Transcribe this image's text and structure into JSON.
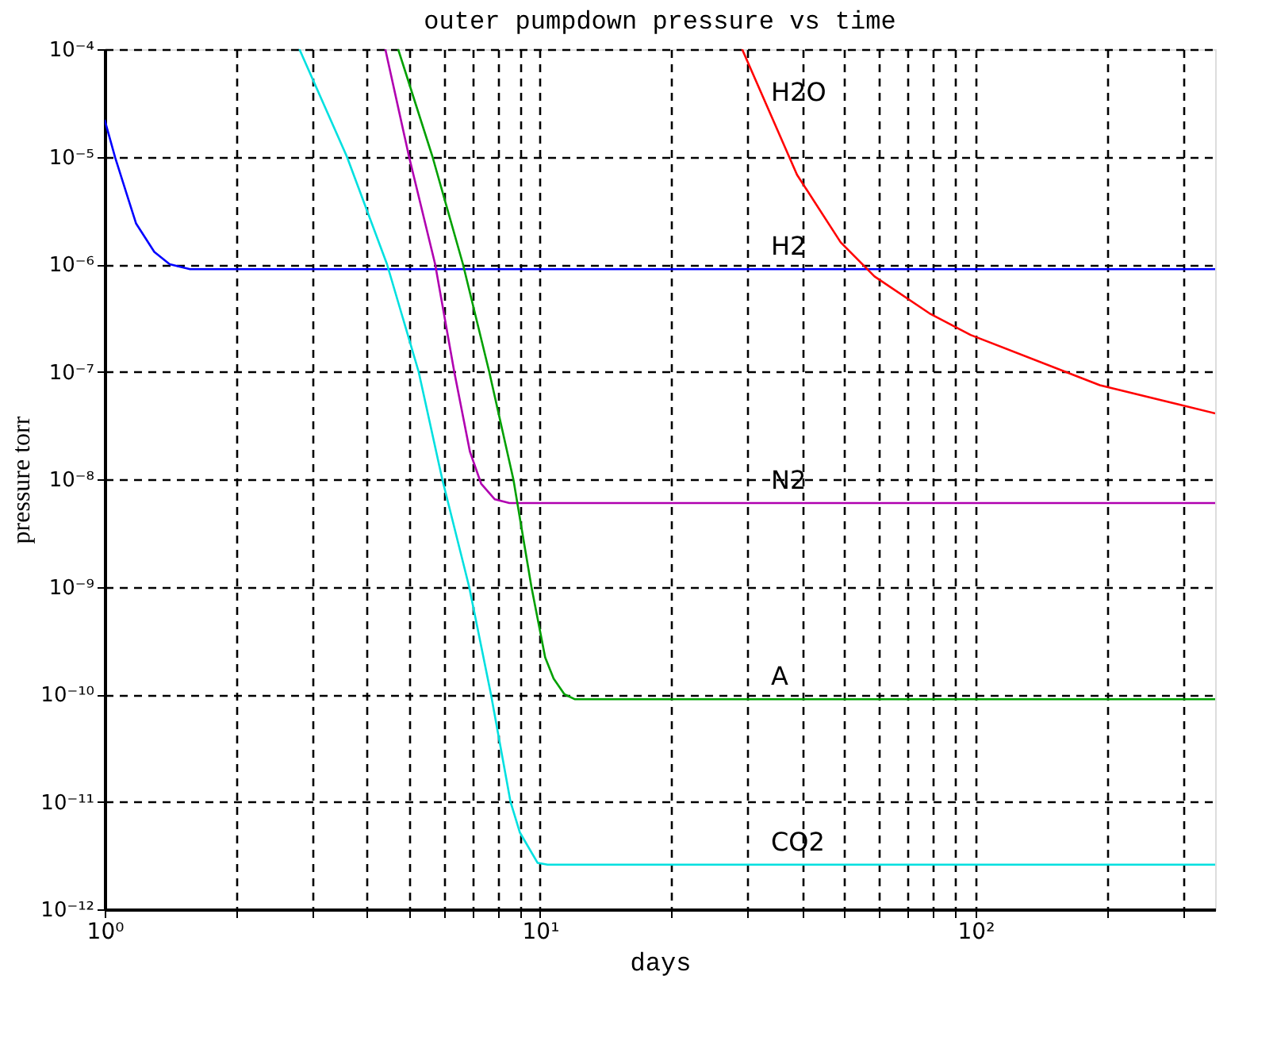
{
  "chart_data": {
    "type": "line",
    "title": "outer pumpdown pressure vs time",
    "xlabel": "days",
    "ylabel": "pressure torr",
    "log": "xy",
    "grid": true,
    "marker": "none",
    "line_style": "solid",
    "xlim": [
      1,
      355
    ],
    "ylim": [
      1e-12,
      0.0001
    ],
    "xticks": [
      {
        "value": 1,
        "label": "10⁰"
      },
      {
        "value": 2,
        "label": null
      },
      {
        "value": 3,
        "label": null
      },
      {
        "value": 4,
        "label": null
      },
      {
        "value": 5,
        "label": null
      },
      {
        "value": 6,
        "label": null
      },
      {
        "value": 7,
        "label": null
      },
      {
        "value": 8,
        "label": null
      },
      {
        "value": 9,
        "label": null
      },
      {
        "value": 10,
        "label": "10¹"
      },
      {
        "value": 20,
        "label": null
      },
      {
        "value": 30,
        "label": null
      },
      {
        "value": 40,
        "label": null
      },
      {
        "value": 50,
        "label": null
      },
      {
        "value": 60,
        "label": null
      },
      {
        "value": 70,
        "label": null
      },
      {
        "value": 80,
        "label": null
      },
      {
        "value": 90,
        "label": null
      },
      {
        "value": 100,
        "label": "10²"
      },
      {
        "value": 200,
        "label": null
      },
      {
        "value": 300,
        "label": null
      }
    ],
    "yticks": [
      {
        "value": 1e-12,
        "label": "10⁻¹²"
      },
      {
        "value": 1e-11,
        "label": "10⁻¹¹"
      },
      {
        "value": 1e-10,
        "label": "10⁻¹⁰"
      },
      {
        "value": 1e-09,
        "label": "10⁻⁹"
      },
      {
        "value": 1e-08,
        "label": "10⁻⁸"
      },
      {
        "value": 1e-07,
        "label": "10⁻⁷"
      },
      {
        "value": 1e-06,
        "label": "10⁻⁶"
      },
      {
        "value": 1e-05,
        "label": "10⁻⁵"
      },
      {
        "value": 0.0001,
        "label": "10⁻⁴"
      }
    ],
    "series": [
      {
        "name": "H2",
        "color": "#0000ff",
        "x": [
          1,
          1.057,
          1.18,
          1.3,
          1.41,
          1.57,
          2,
          10,
          100,
          355
        ],
        "values": [
          2.2e-05,
          9.8e-06,
          2.4e-06,
          1.3e-06,
          1e-06,
          9e-07,
          9e-07,
          9e-07,
          9e-07,
          9e-07
        ]
      },
      {
        "name": "H2O",
        "color": "#ff0000",
        "x": [
          29.1,
          38.9,
          49,
          58.6,
          78.3,
          97.4,
          193,
          355
        ],
        "values": [
          0.0001,
          6.8e-06,
          1.6e-06,
          7.7e-07,
          3.5e-07,
          2.2e-07,
          7.5e-08,
          4.1e-08
        ]
      },
      {
        "name": "N2",
        "color": "#b000b0",
        "x": [
          4.41,
          5.0,
          5.74,
          6.35,
          6.9,
          7.32,
          7.87,
          8.5,
          355
        ],
        "values": [
          0.0001,
          1e-05,
          1e-06,
          1e-07,
          1.8e-08,
          9.1e-09,
          6.5e-09,
          6e-09,
          6e-09
        ]
      },
      {
        "name": "A",
        "color": "#00a000",
        "x": [
          4.72,
          5.66,
          6.65,
          7.64,
          8.68,
          9.55,
          10.27,
          10.74,
          11.37,
          12,
          355
        ],
        "values": [
          0.0001,
          1e-05,
          1e-06,
          1e-07,
          1e-08,
          1e-09,
          2.2e-10,
          1.4e-10,
          1e-10,
          9e-11,
          9e-11
        ]
      },
      {
        "name": "CO2",
        "color": "#00e0e0",
        "x": [
          2.8,
          3.6,
          4.45,
          5.26,
          5.96,
          6.87,
          7.71,
          8.55,
          8.98,
          9.87,
          10.4,
          355
        ],
        "values": [
          0.0001,
          1e-05,
          1e-06,
          1e-07,
          1e-08,
          1e-09,
          1e-10,
          1e-11,
          5.2e-12,
          2.7e-12,
          2.6e-12,
          2.6e-12
        ]
      }
    ]
  }
}
